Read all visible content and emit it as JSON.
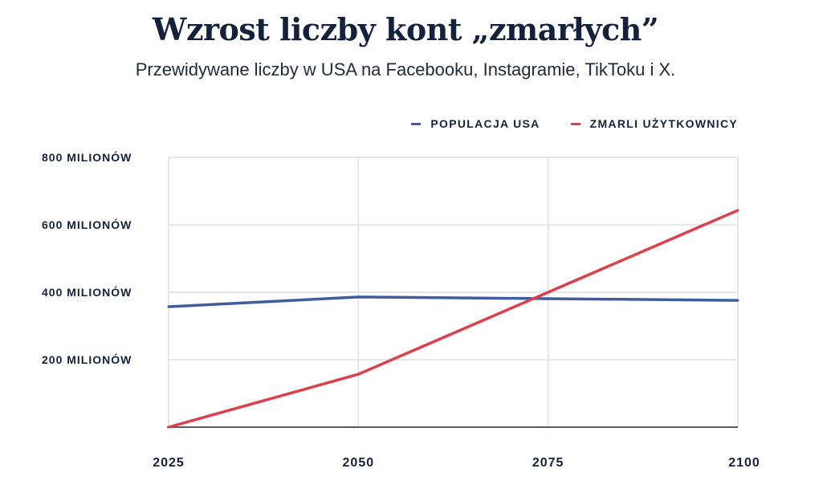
{
  "chart_data": {
    "type": "line",
    "title": "Wzrost liczby kont „zmarłych”",
    "subtitle": "Przewidywane liczby w USA na Facebooku, Instagramie, TikToku i X.",
    "x": [
      2025,
      2050,
      2075,
      2100
    ],
    "x_tick_labels": [
      "2025",
      "2050",
      "2075",
      "2100"
    ],
    "y_tick_values": [
      200,
      400,
      600,
      800
    ],
    "y_tick_labels": [
      "200 MILIONÓW",
      "400 MILIONÓW",
      "600 MILIONÓW",
      "800 MILIONÓW"
    ],
    "ylim": [
      0,
      800
    ],
    "grid": true,
    "legend_position": "top-right",
    "series": [
      {
        "name": "POPULACJA USA",
        "color": "#3f5d9e",
        "values": [
          357,
          386,
          381,
          376
        ]
      },
      {
        "name": "ZMARLI UŻYTKOWNICY",
        "color": "#de3f49",
        "values": [
          0,
          157,
          400,
          643
        ]
      }
    ]
  }
}
